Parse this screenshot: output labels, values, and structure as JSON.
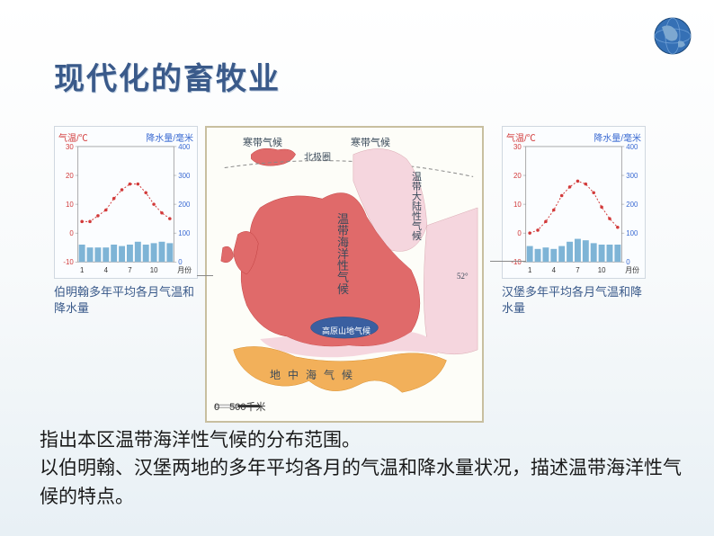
{
  "title": "现代化的畜牧业",
  "globe_colors": {
    "ocean": "#3570b5",
    "land": "#5a8fc8",
    "outline": "#1e4a7a"
  },
  "map": {
    "border_color": "#c8bfa0",
    "bg_color": "#fdfdf8",
    "zones": {
      "polar": {
        "color": "#e6e6e6",
        "label": "寒带气候"
      },
      "continental": {
        "color": "#f5d6de",
        "label": "温带大陆性气候"
      },
      "oceanic": {
        "color": "#e06a6a",
        "label": "温带海洋性气候"
      },
      "highland": {
        "color": "#3a5fa0",
        "label": "高原山地气候"
      },
      "mediterranean": {
        "color": "#f2b05a",
        "label": "地中海气候"
      }
    },
    "arctic_label": "北极圈",
    "lat_label": "52°",
    "scale_label": "0　500千米",
    "path_labels": {
      "oceanic_vert": "温带海洋性气候",
      "med_vert": "地中海气候"
    }
  },
  "chart_left": {
    "axis_left": "气温/℃",
    "axis_right": "降水量/毫米",
    "caption": "伯明翰多年平均各月气温和降水量",
    "y_left": {
      "min": -10,
      "max": 30,
      "ticks": [
        -10,
        0,
        10,
        20,
        30
      ]
    },
    "y_right": {
      "min": 0,
      "max": 400,
      "ticks": [
        0,
        100,
        200,
        300,
        400
      ]
    },
    "x_ticks": [
      1,
      4,
      7,
      10
    ],
    "x_label_suffix": "月份",
    "temp_color": "#d23a3a",
    "precip_color": "#7eb4d6",
    "temp": [
      4,
      4,
      6,
      8,
      12,
      15,
      17,
      17,
      14,
      10,
      7,
      5
    ],
    "precip": [
      60,
      50,
      50,
      50,
      60,
      55,
      60,
      70,
      60,
      65,
      70,
      65
    ]
  },
  "chart_right": {
    "axis_left": "气温/℃",
    "axis_right": "降水量/毫米",
    "caption": "汉堡多年平均各月气温和降水量",
    "y_left": {
      "min": -10,
      "max": 30,
      "ticks": [
        -10,
        0,
        10,
        20,
        30
      ]
    },
    "y_right": {
      "min": 0,
      "max": 400,
      "ticks": [
        0,
        100,
        200,
        300,
        400
      ]
    },
    "x_ticks": [
      1,
      4,
      7,
      10
    ],
    "x_label_suffix": "月份",
    "temp_color": "#d23a3a",
    "precip_color": "#7eb4d6",
    "temp": [
      0,
      1,
      4,
      8,
      13,
      16,
      18,
      17,
      14,
      9,
      5,
      2
    ],
    "precip": [
      55,
      45,
      50,
      45,
      55,
      70,
      80,
      75,
      65,
      60,
      60,
      60
    ]
  },
  "body_text_1": "指出本区温带海洋性气候的分布范围。",
  "body_text_2": "以伯明翰、汉堡两地的多年平均各月的气温和降水量状况，描述温带海洋性气候的特点。"
}
